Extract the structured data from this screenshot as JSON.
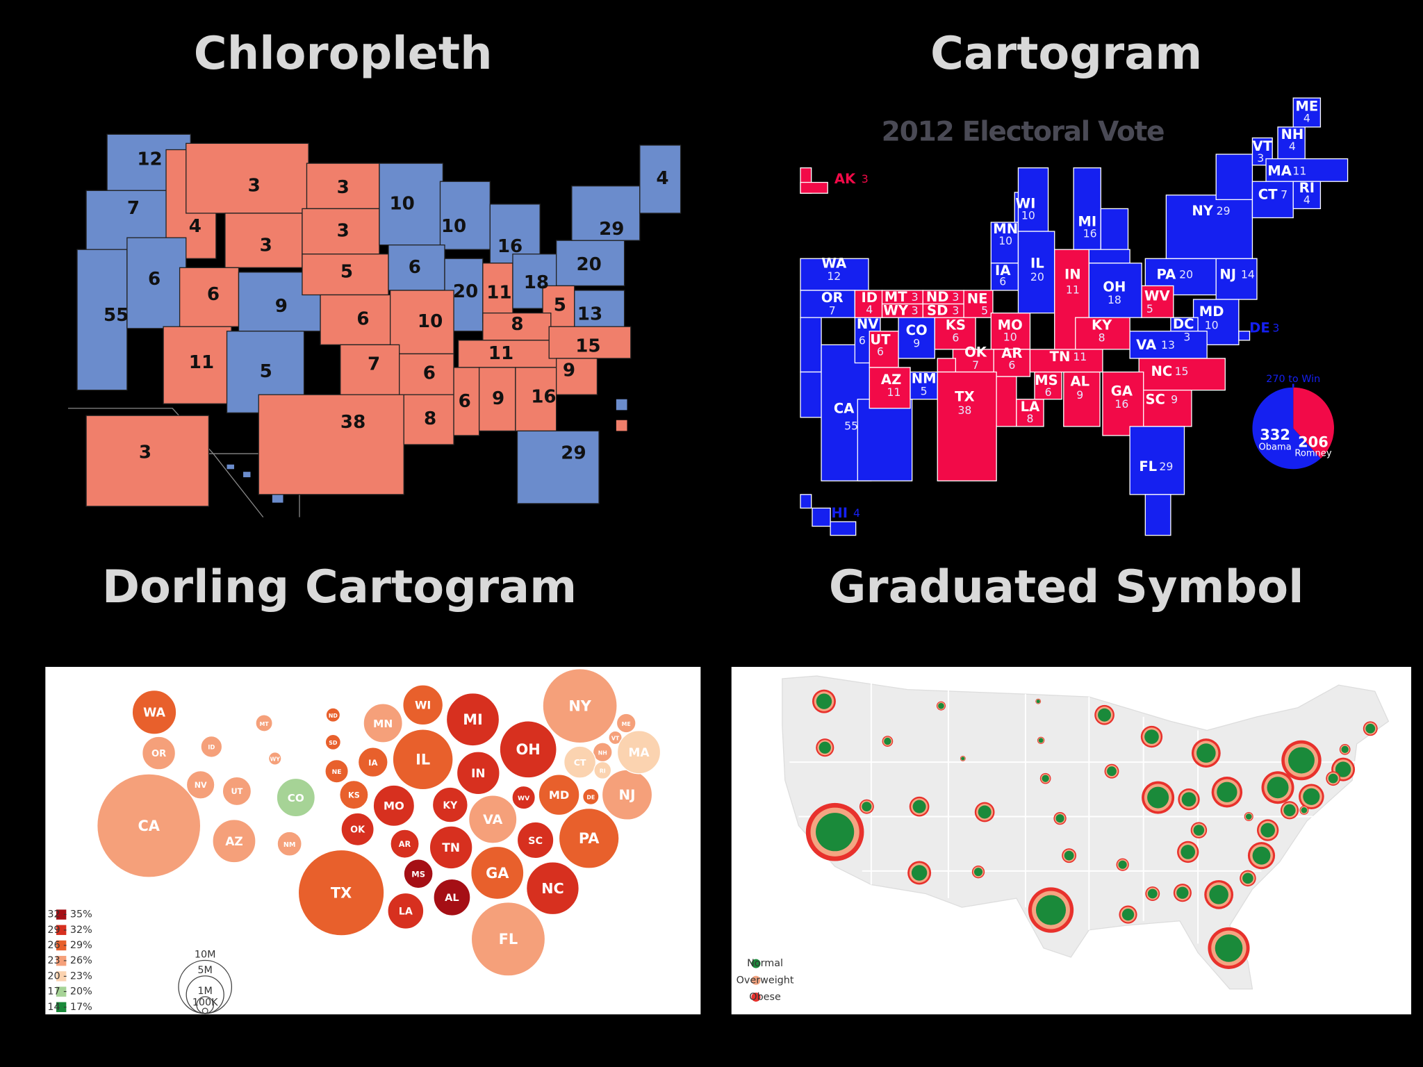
{
  "titles": [
    "Chloropleth",
    "Cartogram",
    "Dorling Cartogram",
    "Graduated Symbol"
  ],
  "choropleth": {
    "labels": [
      {
        "votes": 12,
        "color": "#6b8ccc"
      },
      {
        "votes": 7,
        "color": "#6b8ccc"
      },
      {
        "votes": 4,
        "color": "#f07f6b"
      },
      {
        "votes": 3,
        "color": "#f07f6b"
      },
      {
        "votes": 3,
        "color": "#f07f6b"
      },
      {
        "votes": 3,
        "color": "#f07f6b"
      },
      {
        "votes": 3,
        "color": "#f07f6b"
      },
      {
        "votes": 55,
        "color": "#6b8ccc"
      },
      {
        "votes": 6,
        "color": "#6b8ccc"
      },
      {
        "votes": 6,
        "color": "#f07f6b"
      },
      {
        "votes": 9,
        "color": "#6b8ccc"
      },
      {
        "votes": 5,
        "color": "#f07f6b"
      },
      {
        "votes": 6,
        "color": "#f07f6b"
      },
      {
        "votes": 10,
        "color": "#6b8ccc"
      },
      {
        "votes": 10,
        "color": "#6b8ccc"
      },
      {
        "votes": 16,
        "color": "#6b8ccc"
      },
      {
        "votes": 6,
        "color": "#6b8ccc"
      },
      {
        "votes": 20,
        "color": "#6b8ccc"
      },
      {
        "votes": 11,
        "color": "#f07f6b"
      },
      {
        "votes": 18,
        "color": "#6b8ccc"
      },
      {
        "votes": 20,
        "color": "#6b8ccc"
      },
      {
        "votes": 29,
        "color": "#6b8ccc"
      },
      {
        "votes": 4,
        "color": "#6b8ccc"
      },
      {
        "votes": 5,
        "color": "#f07f6b"
      },
      {
        "votes": 13,
        "color": "#6b8ccc"
      },
      {
        "votes": 10,
        "color": "#f07f6b"
      },
      {
        "votes": 8,
        "color": "#f07f6b"
      },
      {
        "votes": 11,
        "color": "#f07f6b"
      },
      {
        "votes": 15,
        "color": "#f07f6b"
      },
      {
        "votes": 11,
        "color": "#f07f6b"
      },
      {
        "votes": 5,
        "color": "#6b8ccc"
      },
      {
        "votes": 7,
        "color": "#f07f6b"
      },
      {
        "votes": 6,
        "color": "#f07f6b"
      },
      {
        "votes": 38,
        "color": "#f07f6b"
      },
      {
        "votes": 8,
        "color": "#f07f6b"
      },
      {
        "votes": 6,
        "color": "#f07f6b"
      },
      {
        "votes": 9,
        "color": "#f07f6b"
      },
      {
        "votes": 16,
        "color": "#f07f6b"
      },
      {
        "votes": 9,
        "color": "#f07f6b"
      },
      {
        "votes": 29,
        "color": "#6b8ccc"
      },
      {
        "votes": 3,
        "color": "#f07f6b"
      }
    ]
  },
  "cartogram": {
    "title": "2012 Electoral Vote",
    "states": [
      {
        "code": "AK",
        "votes": 3,
        "color": "#f20a48"
      },
      {
        "code": "WA",
        "votes": 12,
        "color": "#1520f0"
      },
      {
        "code": "OR",
        "votes": 7,
        "color": "#1520f0"
      },
      {
        "code": "CA",
        "votes": 55,
        "color": "#1520f0"
      },
      {
        "code": "NV",
        "votes": 6,
        "color": "#1520f0"
      },
      {
        "code": "ID",
        "votes": 4,
        "color": "#f20a48"
      },
      {
        "code": "MT",
        "votes": 3,
        "color": "#f20a48"
      },
      {
        "code": "WY",
        "votes": 3,
        "color": "#f20a48"
      },
      {
        "code": "ND",
        "votes": 3,
        "color": "#f20a48"
      },
      {
        "code": "SD",
        "votes": 3,
        "color": "#f20a48"
      },
      {
        "code": "NE",
        "votes": 5,
        "color": "#f20a48"
      },
      {
        "code": "UT",
        "votes": 6,
        "color": "#f20a48"
      },
      {
        "code": "CO",
        "votes": 9,
        "color": "#1520f0"
      },
      {
        "code": "KS",
        "votes": 6,
        "color": "#f20a48"
      },
      {
        "code": "MO",
        "votes": 10,
        "color": "#f20a48"
      },
      {
        "code": "OK",
        "votes": 7,
        "color": "#f20a48"
      },
      {
        "code": "AR",
        "votes": 6,
        "color": "#f20a48"
      },
      {
        "code": "AZ",
        "votes": 11,
        "color": "#f20a48"
      },
      {
        "code": "NM",
        "votes": 5,
        "color": "#1520f0"
      },
      {
        "code": "TX",
        "votes": 38,
        "color": "#f20a48"
      },
      {
        "code": "LA",
        "votes": 8,
        "color": "#f20a48"
      },
      {
        "code": "MS",
        "votes": 6,
        "color": "#f20a48"
      },
      {
        "code": "AL",
        "votes": 9,
        "color": "#f20a48"
      },
      {
        "code": "TN",
        "votes": 11,
        "color": "#f20a48"
      },
      {
        "code": "WI",
        "votes": 10,
        "color": "#1520f0"
      },
      {
        "code": "MN",
        "votes": 10,
        "color": "#1520f0"
      },
      {
        "code": "IA",
        "votes": 6,
        "color": "#1520f0"
      },
      {
        "code": "IL",
        "votes": 20,
        "color": "#1520f0"
      },
      {
        "code": "IN",
        "votes": 11,
        "color": "#f20a48"
      },
      {
        "code": "MI",
        "votes": 16,
        "color": "#1520f0"
      },
      {
        "code": "OH",
        "votes": 18,
        "color": "#1520f0"
      },
      {
        "code": "KY",
        "votes": 8,
        "color": "#f20a48"
      },
      {
        "code": "PA",
        "votes": 20,
        "color": "#1520f0"
      },
      {
        "code": "NJ",
        "votes": 14,
        "color": "#1520f0"
      },
      {
        "code": "NY",
        "votes": 29,
        "color": "#1520f0"
      },
      {
        "code": "MD",
        "votes": 10,
        "color": "#1520f0"
      },
      {
        "code": "DE",
        "votes": 3,
        "color": "#1520f0"
      },
      {
        "code": "DC",
        "votes": 3,
        "color": "#1520f0"
      },
      {
        "code": "WV",
        "votes": 5,
        "color": "#f20a48"
      },
      {
        "code": "VA",
        "votes": 13,
        "color": "#1520f0"
      },
      {
        "code": "NC",
        "votes": 15,
        "color": "#f20a48"
      },
      {
        "code": "SC",
        "votes": 9,
        "color": "#f20a48"
      },
      {
        "code": "GA",
        "votes": 16,
        "color": "#f20a48"
      },
      {
        "code": "FL",
        "votes": 29,
        "color": "#1520f0"
      },
      {
        "code": "VT",
        "votes": 3,
        "color": "#1520f0"
      },
      {
        "code": "NH",
        "votes": 4,
        "color": "#1520f0"
      },
      {
        "code": "ME",
        "votes": 4,
        "color": "#1520f0"
      },
      {
        "code": "MA",
        "votes": 11,
        "color": "#1520f0"
      },
      {
        "code": "CT",
        "votes": 7,
        "color": "#1520f0"
      },
      {
        "code": "RI",
        "votes": 4,
        "color": "#1520f0"
      },
      {
        "code": "HI",
        "votes": 4,
        "color": "#1520f0"
      }
    ],
    "pie": {
      "label": "270 to Win",
      "slices": [
        {
          "value": 332,
          "name": "Obama",
          "color": "#1520f0"
        },
        {
          "value": 206,
          "name": "Romney",
          "color": "#f20a48"
        }
      ]
    }
  },
  "dorling": {
    "states": [
      {
        "code": "WA",
        "population": 6900000,
        "color": "#e8602c"
      },
      {
        "code": "OR",
        "population": 3900000,
        "color": "#f5a07a"
      },
      {
        "code": "CA",
        "population": 38000000,
        "color": "#f5a07a"
      },
      {
        "code": "ID",
        "population": 1600000,
        "color": "#f5a07a"
      },
      {
        "code": "NV",
        "population": 2800000,
        "color": "#f5a07a"
      },
      {
        "code": "UT",
        "population": 2900000,
        "color": "#f5a07a"
      },
      {
        "code": "AZ",
        "population": 6600000,
        "color": "#f5a07a"
      },
      {
        "code": "MT",
        "population": 1000000,
        "color": "#f5a07a"
      },
      {
        "code": "WY",
        "population": 580000,
        "color": "#f5a07a"
      },
      {
        "code": "CO",
        "population": 5200000,
        "color": "#a6d396"
      },
      {
        "code": "NM",
        "population": 2100000,
        "color": "#f5a07a"
      },
      {
        "code": "ND",
        "population": 700000,
        "color": "#e8602c"
      },
      {
        "code": "SD",
        "population": 830000,
        "color": "#e8602c"
      },
      {
        "code": "NE",
        "population": 1900000,
        "color": "#e8602c"
      },
      {
        "code": "KS",
        "population": 2900000,
        "color": "#e8602c"
      },
      {
        "code": "OK",
        "population": 3800000,
        "color": "#d7301f"
      },
      {
        "code": "TX",
        "population": 26100000,
        "color": "#e8602c"
      },
      {
        "code": "MN",
        "population": 5400000,
        "color": "#f5a07a"
      },
      {
        "code": "WI",
        "population": 5700000,
        "color": "#e8602c"
      },
      {
        "code": "IA",
        "population": 3100000,
        "color": "#e8602c"
      },
      {
        "code": "IL",
        "population": 12900000,
        "color": "#e8602c"
      },
      {
        "code": "MI",
        "population": 9900000,
        "color": "#d7301f"
      },
      {
        "code": "IN",
        "population": 6500000,
        "color": "#d7301f"
      },
      {
        "code": "OH",
        "population": 11500000,
        "color": "#d7301f"
      },
      {
        "code": "MO",
        "population": 6000000,
        "color": "#d7301f"
      },
      {
        "code": "KY",
        "population": 4400000,
        "color": "#d7301f"
      },
      {
        "code": "AR",
        "population": 2900000,
        "color": "#d7301f"
      },
      {
        "code": "TN",
        "population": 6500000,
        "color": "#d7301f"
      },
      {
        "code": "MS",
        "population": 3000000,
        "color": "#a50f15"
      },
      {
        "code": "AL",
        "population": 4800000,
        "color": "#a50f15"
      },
      {
        "code": "LA",
        "population": 4600000,
        "color": "#d7301f"
      },
      {
        "code": "VA",
        "population": 8200000,
        "color": "#f5a07a"
      },
      {
        "code": "WV",
        "population": 1900000,
        "color": "#d7301f"
      },
      {
        "code": "MD",
        "population": 5900000,
        "color": "#e8602c"
      },
      {
        "code": "DE",
        "population": 920000,
        "color": "#e8602c"
      },
      {
        "code": "NJ",
        "population": 8900000,
        "color": "#f5a07a"
      },
      {
        "code": "PA",
        "population": 12800000,
        "color": "#e8602c"
      },
      {
        "code": "SC",
        "population": 4700000,
        "color": "#d7301f"
      },
      {
        "code": "GA",
        "population": 9900000,
        "color": "#e8602c"
      },
      {
        "code": "NC",
        "population": 9800000,
        "color": "#d7301f"
      },
      {
        "code": "FL",
        "population": 19300000,
        "color": "#f5a07a"
      },
      {
        "code": "NY",
        "population": 19600000,
        "color": "#f5a07a"
      },
      {
        "code": "ME",
        "population": 1300000,
        "color": "#f5a07a"
      },
      {
        "code": "VT",
        "population": 630000,
        "color": "#f5a07a"
      },
      {
        "code": "NH",
        "population": 1300000,
        "color": "#f5a07a"
      },
      {
        "code": "MA",
        "population": 6600000,
        "color": "#fbd3b0"
      },
      {
        "code": "CT",
        "population": 3600000,
        "color": "#fbd3b0"
      },
      {
        "code": "RI",
        "population": 1050000,
        "color": "#fbd3b0"
      }
    ],
    "legend": [
      {
        "label": "32 - 35%",
        "color": "#a50f15"
      },
      {
        "label": "29 - 32%",
        "color": "#d7301f"
      },
      {
        "label": "26 - 29%",
        "color": "#e8602c"
      },
      {
        "label": "23 - 26%",
        "color": "#f5a07a"
      },
      {
        "label": "20 - 23%",
        "color": "#fbd3b0"
      },
      {
        "label": "17 - 20%",
        "color": "#a6d396"
      },
      {
        "label": "14 - 17%",
        "color": "#1a8a3a"
      }
    ],
    "scale": [
      {
        "value": 10000000,
        "label": "10M"
      },
      {
        "value": 5000000,
        "label": "5M"
      },
      {
        "value": 1000000,
        "label": "1M"
      },
      {
        "value": 100000,
        "label": "100K"
      }
    ]
  },
  "graduated": {
    "symbols": [
      13,
      10,
      6,
      5,
      3,
      11,
      4,
      3,
      6,
      8,
      12,
      16,
      22,
      6,
      13,
      8,
      8,
      8,
      11,
      7,
      11,
      18,
      12,
      17,
      18,
      14,
      10,
      5,
      5,
      12,
      9,
      8,
      12,
      7,
      15,
      13,
      7,
      9,
      32,
      25,
      8,
      10,
      16,
      10,
      23
    ],
    "legend": [
      {
        "name": "Normal",
        "color": "#1a8a3a"
      },
      {
        "name": "Overweight",
        "color": "#f4a582"
      },
      {
        "name": "Obese",
        "color": "#e8312c"
      }
    ]
  }
}
